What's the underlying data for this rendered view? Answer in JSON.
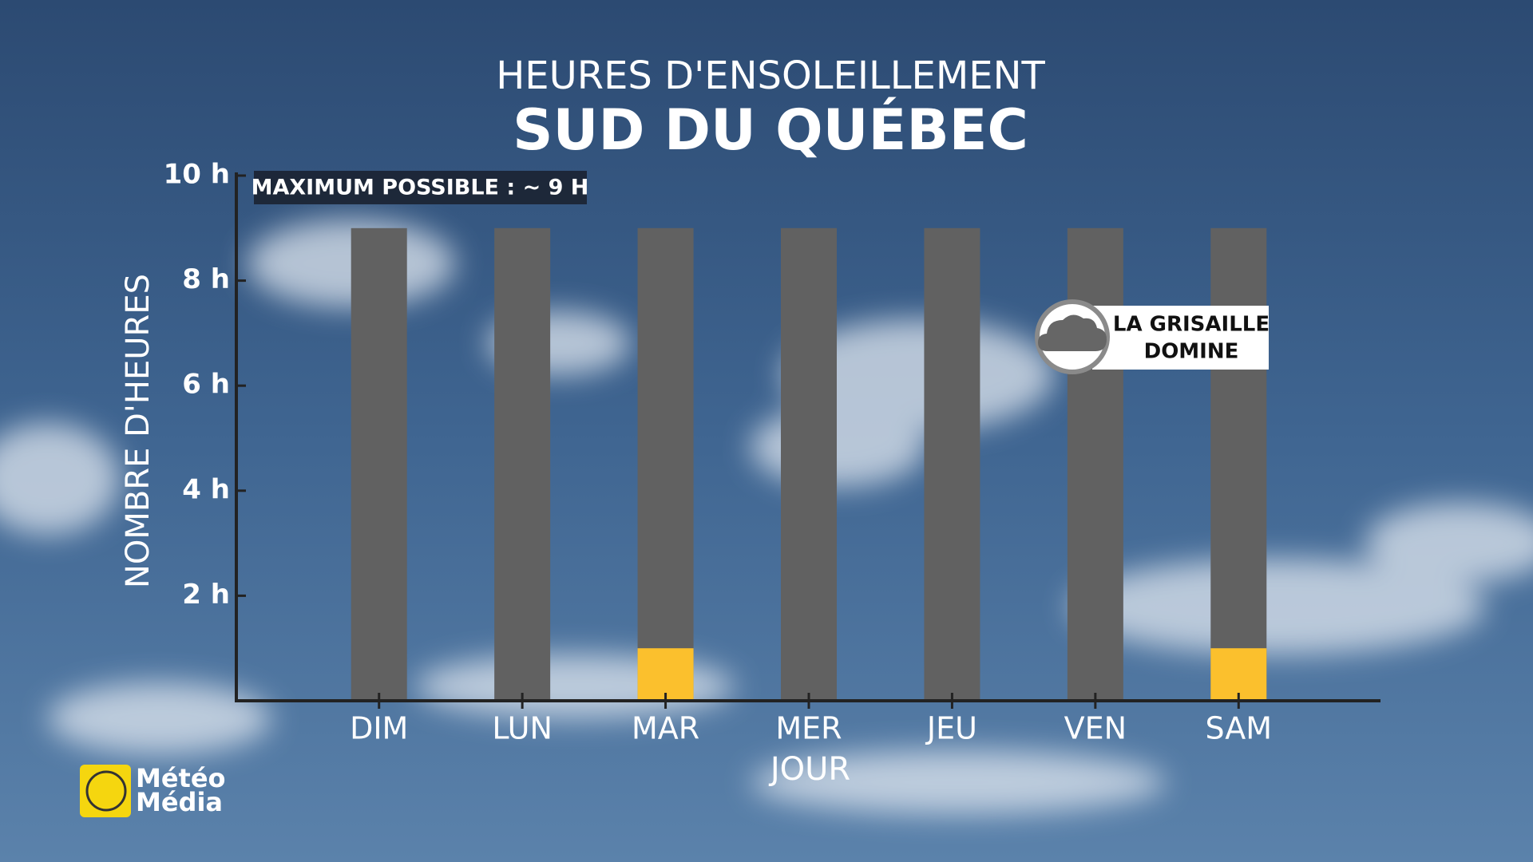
{
  "chart_data": {
    "type": "bar",
    "title": "HEURES D'ENSOLEILLEMENT",
    "subtitle": "SUD DU QUÉBEC",
    "x_label": "JOUR",
    "y_label": "NOMBRE D'HEURES",
    "annotation": "MAXIMUM POSSIBLE : ~ 9 H",
    "callout": [
      "LA GRISAILLE",
      "DOMINE"
    ],
    "categories": [
      "DIM",
      "LUN",
      "MAR",
      "MER",
      "JEU",
      "VEN",
      "SAM"
    ],
    "series": [
      {
        "color": "#616161",
        "values": [
          9,
          9,
          9,
          9,
          9,
          9,
          9
        ]
      },
      {
        "color": "#fbc02d",
        "values": [
          0,
          0,
          1,
          0,
          0,
          0,
          1
        ]
      }
    ],
    "overlay": true,
    "ylim": [
      0,
      10
    ],
    "yticks": [
      {
        "value": 2,
        "label": "2 h"
      },
      {
        "value": 4,
        "label": "4 h"
      },
      {
        "value": 6,
        "label": "6 h"
      },
      {
        "value": 8,
        "label": "8 h"
      },
      {
        "value": 10,
        "label": "10 h"
      }
    ]
  },
  "logo": [
    "Météo",
    "Média"
  ]
}
